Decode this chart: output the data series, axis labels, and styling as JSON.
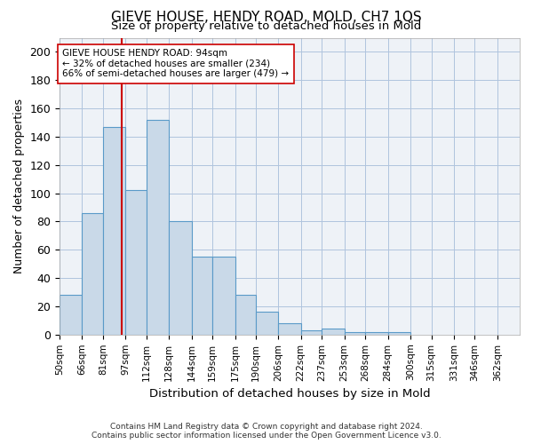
{
  "title": "GIEVE HOUSE, HENDY ROAD, MOLD, CH7 1QS",
  "subtitle": "Size of property relative to detached houses in Mold",
  "xlabel": "Distribution of detached houses by size in Mold",
  "ylabel": "Number of detached properties",
  "bar_values": [
    28,
    86,
    147,
    102,
    152,
    80,
    55,
    55,
    28,
    16,
    8,
    3,
    4,
    2,
    2,
    2
  ],
  "bin_labels": [
    "50sqm",
    "66sqm",
    "81sqm",
    "97sqm",
    "112sqm",
    "128sqm",
    "144sqm",
    "159sqm",
    "175sqm",
    "190sqm",
    "206sqm",
    "222sqm",
    "237sqm",
    "253sqm",
    "268sqm",
    "284sqm",
    "300sqm",
    "315sqm",
    "331sqm",
    "346sqm",
    "362sqm"
  ],
  "bar_color": "#c9d9e8",
  "bar_edge_color": "#5a9ac8",
  "grid_color": "#b0c4de",
  "background_color": "#eef2f7",
  "vline_color": "#cc0000",
  "annotation_text": "GIEVE HOUSE HENDY ROAD: 94sqm\n← 32% of detached houses are smaller (234)\n66% of semi-detached houses are larger (479) →",
  "annotation_box_color": "#ffffff",
  "annotation_box_edge": "#cc0000",
  "footer": "Contains HM Land Registry data © Crown copyright and database right 2024.\nContains public sector information licensed under the Open Government Licence v3.0.",
  "ylim": [
    0,
    210
  ],
  "bin_edges": [
    50,
    66,
    81,
    97,
    112,
    128,
    144,
    159,
    175,
    190,
    206,
    222,
    237,
    253,
    268,
    284,
    300,
    315,
    331,
    346,
    362
  ]
}
